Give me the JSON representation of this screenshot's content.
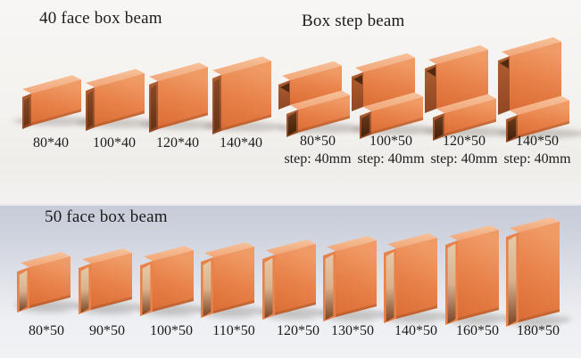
{
  "groups": [
    {
      "id": "face40",
      "title": "40 face box beam",
      "beams": [
        {
          "label": "80*40",
          "size": 80
        },
        {
          "label": "100*40",
          "size": 100
        },
        {
          "label": "120*40",
          "size": 120
        },
        {
          "label": "140*40",
          "size": 140
        }
      ]
    },
    {
      "id": "step",
      "title": "Box step beam",
      "beams": [
        {
          "label": "80*50",
          "step": "step: 40mm",
          "size": 80
        },
        {
          "label": "100*50",
          "step": "step: 40mm",
          "size": 100
        },
        {
          "label": "120*50",
          "step": "step: 40mm",
          "size": 120
        },
        {
          "label": "140*50",
          "step": "step: 40mm",
          "size": 140
        }
      ]
    },
    {
      "id": "face50",
      "title": "50 face box beam",
      "beams": [
        {
          "label": "80*50",
          "size": 80
        },
        {
          "label": "90*50",
          "size": 90
        },
        {
          "label": "100*50",
          "size": 100
        },
        {
          "label": "110*50",
          "size": 110
        },
        {
          "label": "120*50",
          "size": 120
        },
        {
          "label": "130*50",
          "size": 130
        },
        {
          "label": "140*50",
          "size": 140
        },
        {
          "label": "160*50",
          "size": 160
        },
        {
          "label": "180*50",
          "size": 180
        }
      ]
    }
  ],
  "colors": {
    "front_bottom": "#da6c34",
    "front_mid": "#e8824a",
    "front_top": "#f09a66",
    "top_face_near": "#f1a678",
    "top_face_far": "#f7c29a",
    "end_dark": "#8f4723",
    "end_light": "#b05e31",
    "hollow_dark": "#41220a",
    "hollow_light": "#6b3a1d",
    "interior_top": "#e6c9a8",
    "interior_mid": "#d9b28c",
    "interior_bottom": "#7c4526",
    "text": "#1c1c1c",
    "shadow": "#6e655f"
  }
}
